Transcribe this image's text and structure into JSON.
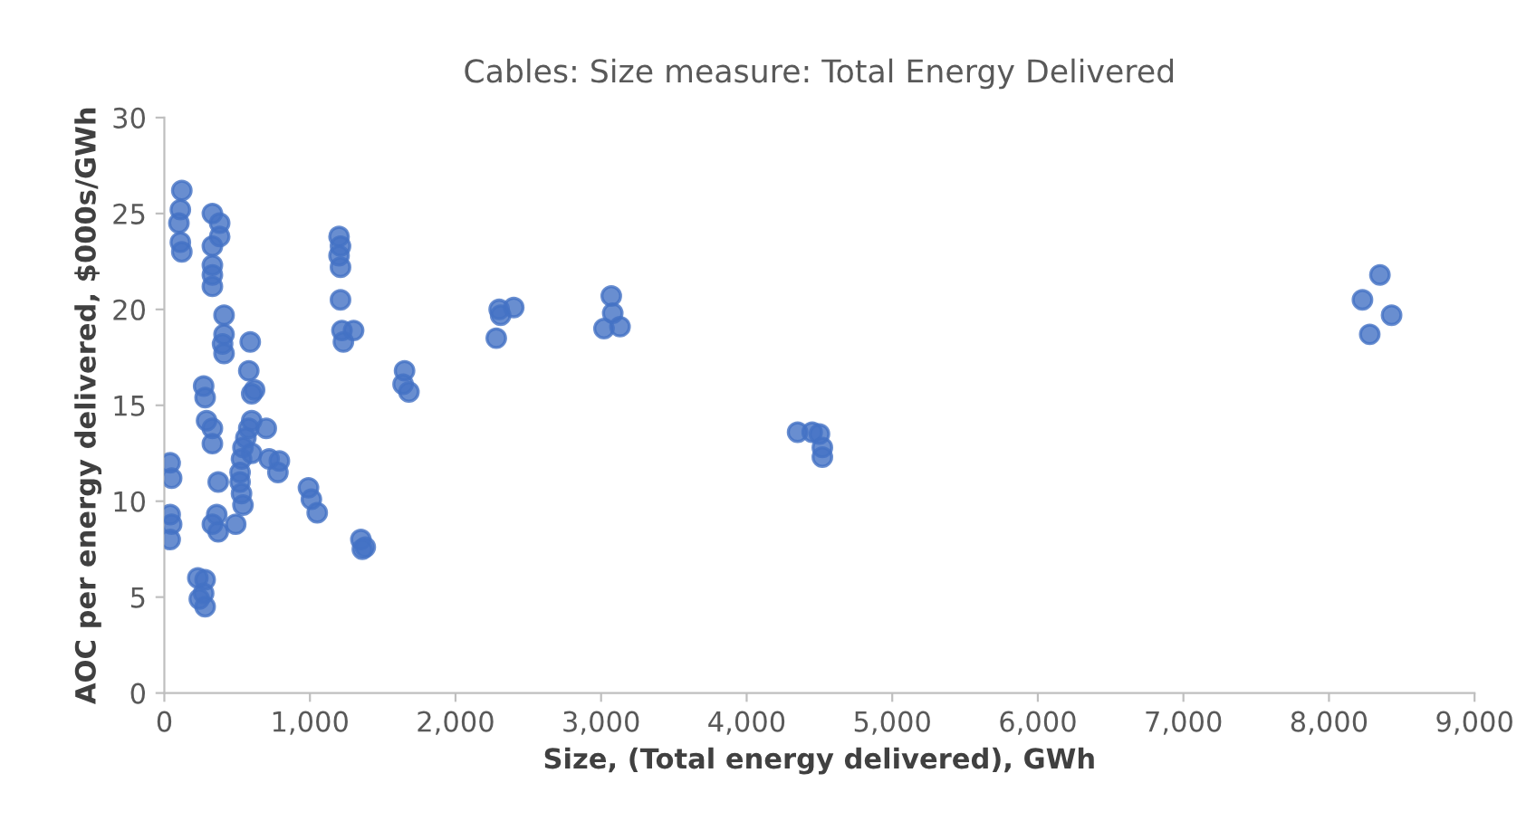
{
  "chart_data": {
    "type": "scatter",
    "title": "Cables: Size measure: Total Energy Delivered",
    "xlabel": "Size, (Total energy delivered), GWh",
    "ylabel": "AOC per energy delivered, $000s/GWh",
    "xlim": [
      0,
      9000
    ],
    "ylim": [
      0,
      30
    ],
    "xticks": [
      0,
      {
        "value": 1000,
        "label": "1,000"
      },
      {
        "value": 2000,
        "label": "2,000"
      },
      {
        "value": 3000,
        "label": "3,000"
      },
      {
        "value": 4000,
        "label": "4,000"
      },
      {
        "value": 5000,
        "label": "5,000"
      },
      {
        "value": 6000,
        "label": "6,000"
      },
      {
        "value": 7000,
        "label": "7,000"
      },
      {
        "value": 8000,
        "label": "8,000"
      },
      {
        "value": 9000,
        "label": "9,000"
      }
    ],
    "yticks": [
      0,
      5,
      10,
      15,
      20,
      25,
      30
    ],
    "grid": false,
    "marker": "circle",
    "series": [
      {
        "color": "#4472c4",
        "x": [
          120,
          110,
          100,
          110,
          120,
          40,
          50,
          40,
          50,
          40,
          330,
          380,
          380,
          330,
          330,
          330,
          330,
          410,
          410,
          400,
          410,
          270,
          280,
          290,
          330,
          330,
          230,
          280,
          270,
          240,
          280,
          370,
          360,
          330,
          370,
          490,
          590,
          580,
          620,
          600,
          600,
          580,
          560,
          600,
          540,
          530,
          520,
          520,
          530,
          540,
          700,
          720,
          790,
          780,
          990,
          1010,
          1050,
          1200,
          1210,
          1200,
          1210,
          1210,
          1220,
          1230,
          1300,
          1350,
          1380,
          1360,
          1650,
          1640,
          1680,
          2300,
          2310,
          2280,
          2400,
          3070,
          3080,
          3020,
          3130,
          4350,
          4450,
          4500,
          4520,
          4520,
          8230,
          8280,
          8350,
          8430
        ],
        "values": [
          26.2,
          25.2,
          24.5,
          23.5,
          23.0,
          12.0,
          11.2,
          9.3,
          8.8,
          8.0,
          25.0,
          24.5,
          23.8,
          23.3,
          22.3,
          21.8,
          21.2,
          19.7,
          18.7,
          18.2,
          17.7,
          16.0,
          15.4,
          14.2,
          13.8,
          13.0,
          6.0,
          5.9,
          5.2,
          4.9,
          4.5,
          11.0,
          9.3,
          8.8,
          8.4,
          8.8,
          18.3,
          16.8,
          15.8,
          15.6,
          14.2,
          13.8,
          13.3,
          12.5,
          12.8,
          12.2,
          11.5,
          11.0,
          10.4,
          9.8,
          13.8,
          12.2,
          12.1,
          11.5,
          10.7,
          10.1,
          9.4,
          23.8,
          23.3,
          22.8,
          22.2,
          20.5,
          18.9,
          18.3,
          18.9,
          8.0,
          7.6,
          7.5,
          16.8,
          16.1,
          15.7,
          20.0,
          19.7,
          18.5,
          20.1,
          20.7,
          19.8,
          19.0,
          19.1,
          13.6,
          13.6,
          13.5,
          12.8,
          12.3,
          20.5,
          18.7,
          21.8,
          19.7
        ]
      }
    ]
  }
}
